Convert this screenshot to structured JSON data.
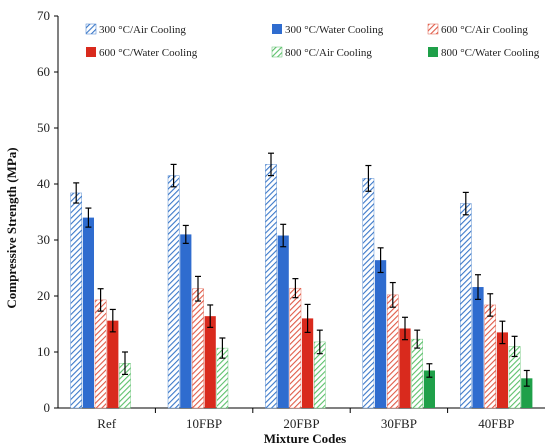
{
  "chart_data": {
    "type": "bar",
    "xlabel": "Mixture Codes",
    "ylabel": "Compressive Strength (MPa)",
    "ylim": [
      0,
      70
    ],
    "yticks": [
      0,
      10,
      20,
      30,
      40,
      50,
      60,
      70
    ],
    "grid": false,
    "legend_position": "top",
    "categories": [
      "Ref",
      "10FBP",
      "20FBP",
      "30FBP",
      "40FBP"
    ],
    "series": [
      {
        "name": "300 °C/Air Cooling",
        "color": "#3b78c9",
        "pattern": "hatch",
        "values": [
          38.4,
          41.5,
          43.5,
          41.0,
          36.5
        ],
        "errors": [
          1.8,
          2.0,
          2.0,
          2.3,
          2.0
        ]
      },
      {
        "name": "300 °C/Water Cooling",
        "color": "#2f6ccf",
        "pattern": "solid",
        "values": [
          34.0,
          31.0,
          30.8,
          26.4,
          21.6
        ],
        "errors": [
          1.7,
          1.6,
          2.0,
          2.2,
          2.2
        ]
      },
      {
        "name": "600 °C/Air Cooling",
        "color": "#e05a47",
        "pattern": "hatch",
        "values": [
          19.3,
          21.3,
          21.4,
          20.2,
          18.4
        ],
        "errors": [
          2.0,
          2.2,
          1.7,
          2.2,
          2.0
        ]
      },
      {
        "name": "600 °C/Water Cooling",
        "color": "#d92a1d",
        "pattern": "solid",
        "values": [
          15.6,
          16.4,
          16.0,
          14.2,
          13.5
        ],
        "errors": [
          2.0,
          2.0,
          2.5,
          2.0,
          2.0
        ]
      },
      {
        "name": "800 °C/Air Cooling",
        "color": "#5cc06b",
        "pattern": "hatch",
        "values": [
          8.0,
          10.7,
          11.8,
          12.3,
          11.0
        ],
        "errors": [
          2.0,
          1.8,
          2.1,
          1.6,
          1.8
        ]
      },
      {
        "name": "800 °C/Water Cooling",
        "color": "#1fa049",
        "pattern": "solid",
        "values": [
          0,
          0,
          0,
          6.7,
          5.3
        ],
        "errors": [
          0,
          0,
          0,
          1.2,
          1.4
        ]
      }
    ]
  }
}
